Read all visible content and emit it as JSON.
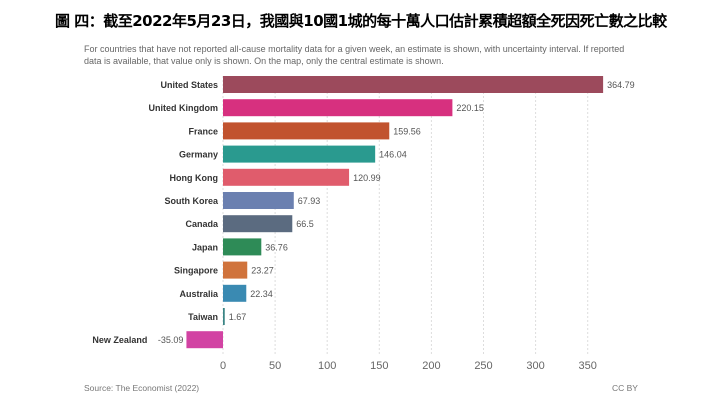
{
  "title": "圖 四：截至2022年5月23日，我國與10國1城的每十萬人口估計累積超額全死因死亡數之比較",
  "subtitle": "For countries that have not reported all-cause mortality data for a given week, an estimate is shown, with uncertainty interval. If reported data is available, that value only is shown. On the map, only the central estimate is shown.",
  "source": "Source: The Economist (2022)",
  "license": "CC BY",
  "chart_data": {
    "type": "bar",
    "orientation": "horizontal",
    "categories": [
      "United States",
      "United Kingdom",
      "France",
      "Germany",
      "Hong Kong",
      "South Korea",
      "Canada",
      "Japan",
      "Singapore",
      "Australia",
      "Taiwan",
      "New Zealand"
    ],
    "values": [
      364.79,
      220.15,
      159.56,
      146.04,
      120.99,
      67.93,
      66.5,
      36.76,
      23.27,
      22.34,
      1.67,
      -35.09
    ],
    "value_labels": [
      "364.79",
      "220.15",
      "159.56",
      "146.04",
      "120.99",
      "67.93",
      "66.5",
      "36.76",
      "23.27",
      "22.34",
      "1.67",
      "-35.09"
    ],
    "colors": [
      "#9c4a5c",
      "#d7307f",
      "#c1532f",
      "#2a9a8f",
      "#e05c6c",
      "#6b80b0",
      "#5b6b80",
      "#2e8b57",
      "#d0733c",
      "#3a8ab2",
      "#3a8585",
      "#d243a3"
    ],
    "xticks": [
      "0",
      "50",
      "100",
      "150",
      "200",
      "250",
      "300",
      "350"
    ],
    "xlim": [
      -40,
      370
    ],
    "grid": true,
    "title": "",
    "xlabel": "",
    "ylabel": ""
  }
}
